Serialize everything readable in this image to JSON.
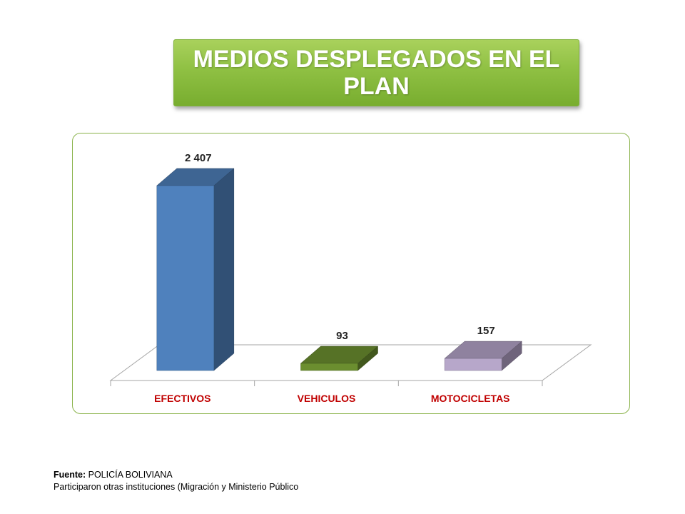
{
  "title": "MEDIOS DESPLEGADOS  EN EL PLAN",
  "chart_data": {
    "type": "bar",
    "title": "",
    "xlabel": "",
    "ylabel": "",
    "categories": [
      "EFECTIVOS",
      "VEHICULOS",
      "MOTOCICLETAS"
    ],
    "values": [
      2407,
      93,
      157
    ],
    "value_labels": [
      "2 407",
      "93",
      "157"
    ],
    "colors": [
      "#4f81bd",
      "#6b8e2f",
      "#b3a2c7"
    ],
    "category_label_color": "#c00000",
    "ylim": [
      0,
      2500
    ],
    "grid": false,
    "legend": "none",
    "style": "3d-column"
  },
  "footer": {
    "source_label": "Fuente:",
    "source_value": "POLICÍA BOLIVIANA",
    "note": "Participaron otras instituciones (Migración y Ministerio Público"
  }
}
